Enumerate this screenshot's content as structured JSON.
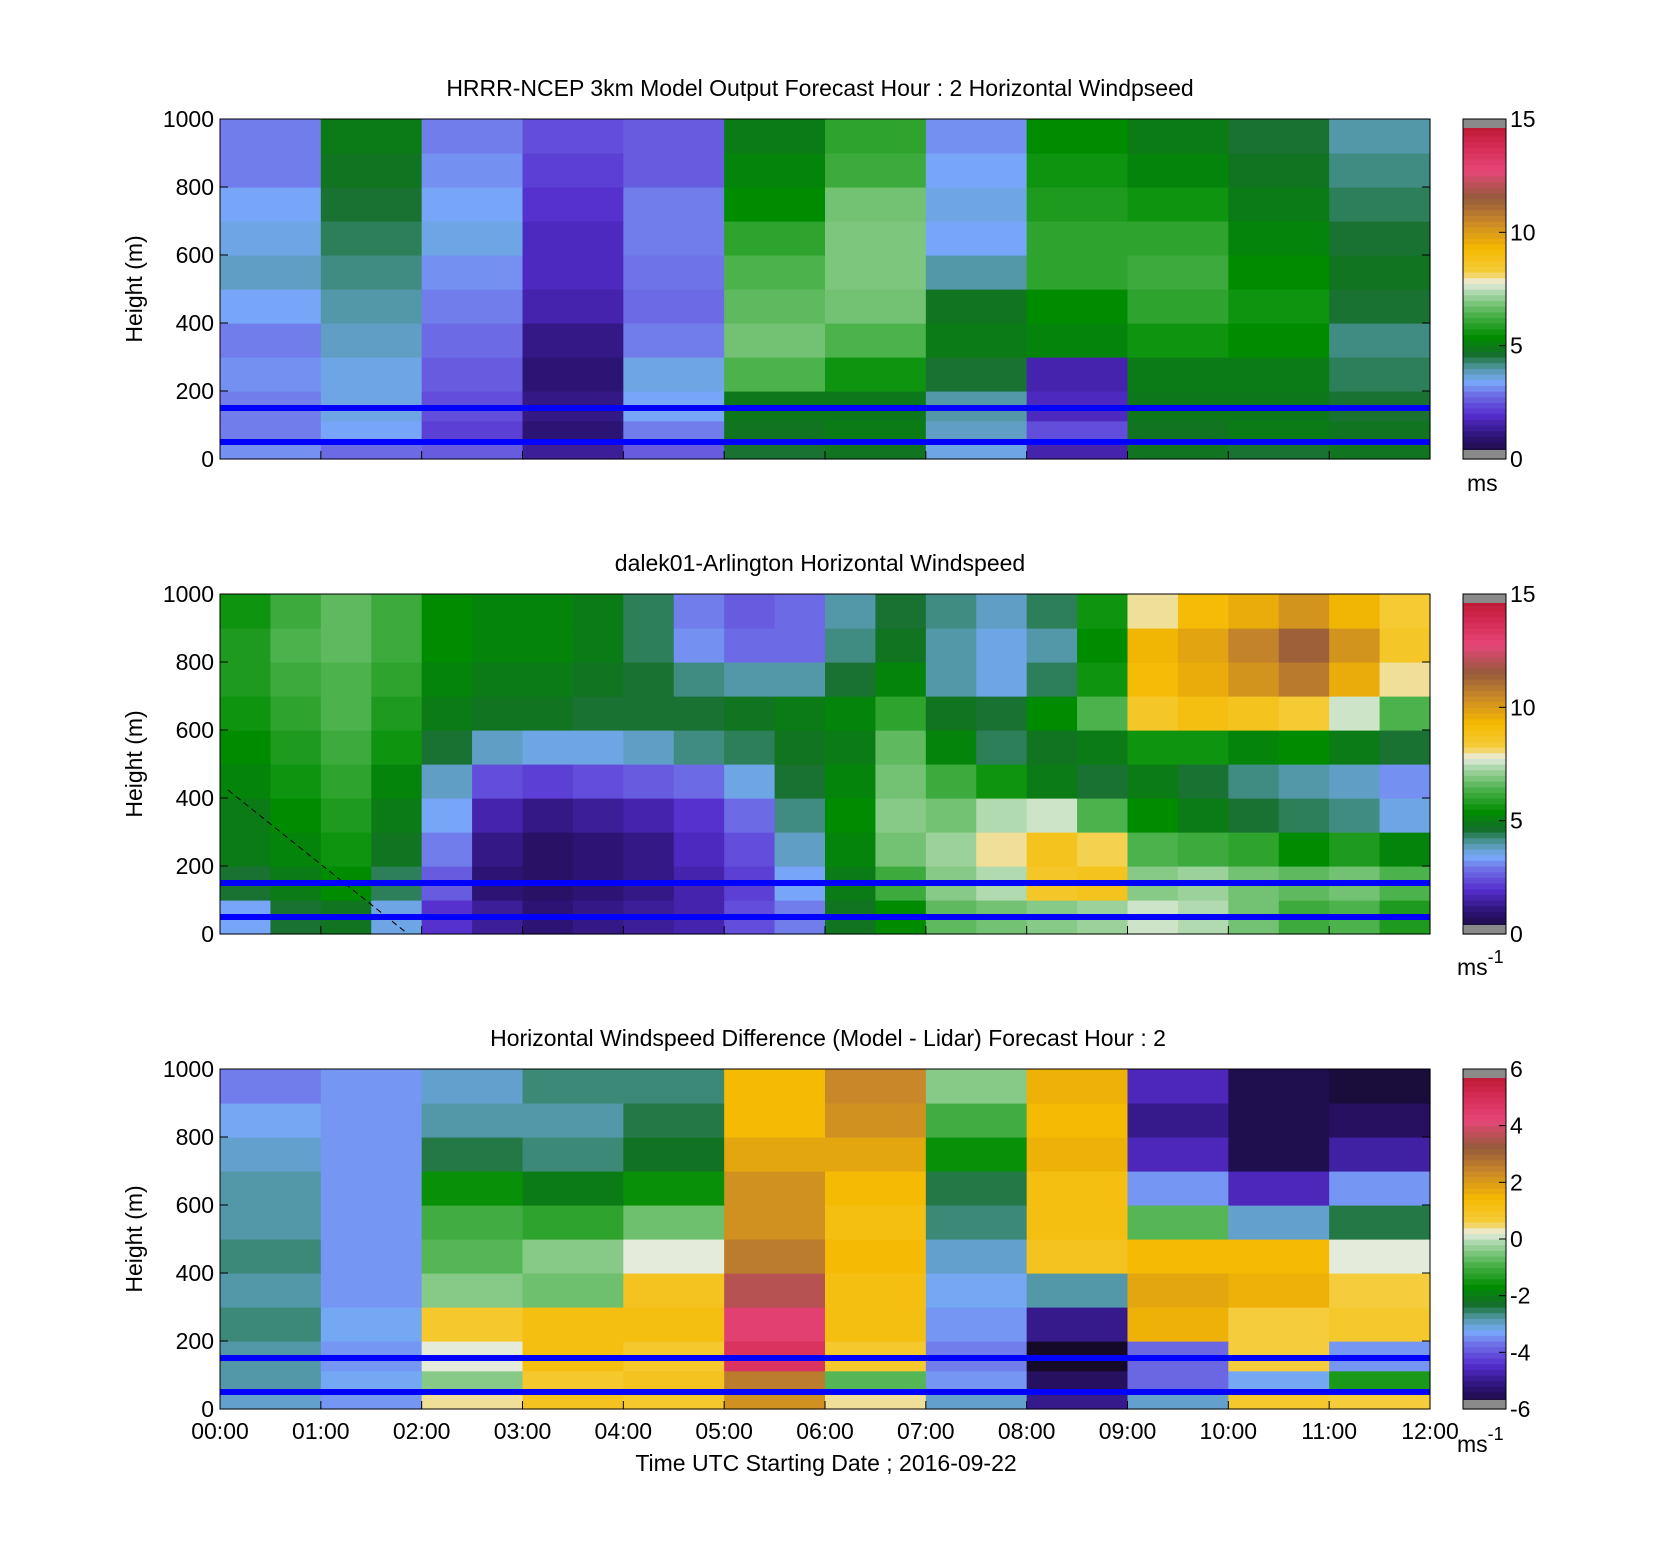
{
  "figure": {
    "x_tick_labels": [
      "00:00",
      "01:00",
      "02:00",
      "03:00",
      "04:00",
      "05:00",
      "06:00",
      "07:00",
      "08:00",
      "09:00",
      "10:00",
      "11:00",
      "12:00"
    ],
    "x_label": "Time UTC  Starting Date ; 2016-09-22",
    "reference_lines_m": [
      50,
      150
    ],
    "reference_line_color": "#0000ff"
  },
  "chart_data": [
    {
      "type": "heatmap",
      "title": "HRRR-NCEP 3km Model Output   Forecast Hour : 2 Horizontal Windpseed",
      "ylabel": "Height (m)",
      "ylim": [
        0,
        1000
      ],
      "y_ticks": [
        "0",
        "200",
        "400",
        "600",
        "800",
        "1000"
      ],
      "colorbar": {
        "range": [
          0,
          15
        ],
        "ticks": [
          "0",
          "5",
          "10",
          "15"
        ],
        "unit": "ms",
        "unit_sup": ""
      },
      "x_hours": [
        0,
        1,
        2,
        3,
        4,
        5,
        6,
        7,
        8,
        9,
        10,
        11,
        12
      ],
      "heights_m": [
        25,
        75,
        150,
        250,
        350,
        450,
        550,
        650,
        750,
        850,
        950
      ],
      "values": [
        [
          3.2,
          2.8,
          2.6,
          1.4,
          2.6,
          4.6,
          4.8,
          3.6,
          1.6,
          4.8,
          4.6,
          4.8
        ],
        [
          3.0,
          3.4,
          2.2,
          1.0,
          3.0,
          4.8,
          5.0,
          3.8,
          2.4,
          4.8,
          5.0,
          4.8
        ],
        [
          3.0,
          3.6,
          2.4,
          1.2,
          3.4,
          4.9,
          4.9,
          4.0,
          1.8,
          4.9,
          4.9,
          4.6
        ],
        [
          3.2,
          3.6,
          2.6,
          1.0,
          3.6,
          6.4,
          5.6,
          4.6,
          1.6,
          5.0,
          5.0,
          4.4
        ],
        [
          3.0,
          3.8,
          2.8,
          1.2,
          3.0,
          6.8,
          6.4,
          5.0,
          5.2,
          5.6,
          5.4,
          4.2
        ],
        [
          3.4,
          4.0,
          3.0,
          1.6,
          2.8,
          6.6,
          6.8,
          4.8,
          5.4,
          6.0,
          5.6,
          4.6
        ],
        [
          3.8,
          4.2,
          3.2,
          1.8,
          2.9,
          6.4,
          6.9,
          4.0,
          6.0,
          6.2,
          5.4,
          4.8
        ],
        [
          3.6,
          4.4,
          3.6,
          1.8,
          3.0,
          6.0,
          6.9,
          3.4,
          6.0,
          6.0,
          5.2,
          4.6
        ],
        [
          3.4,
          4.6,
          3.4,
          2.0,
          3.0,
          5.4,
          6.8,
          3.6,
          5.8,
          5.6,
          5.0,
          4.4
        ],
        [
          3.0,
          4.8,
          3.2,
          2.2,
          2.6,
          5.2,
          6.2,
          3.4,
          5.6,
          5.2,
          4.8,
          4.2
        ],
        [
          3.0,
          5.0,
          3.0,
          2.4,
          2.6,
          5.0,
          6.0,
          3.2,
          5.4,
          5.0,
          4.6,
          4.0
        ]
      ]
    },
    {
      "type": "heatmap",
      "title": "dalek01-Arlington  Horizontal Windspeed",
      "ylabel": "Height (m)",
      "ylim": [
        0,
        1000
      ],
      "y_ticks": [
        "0",
        "200",
        "400",
        "600",
        "800",
        "1000"
      ],
      "colorbar": {
        "range": [
          0,
          15
        ],
        "ticks": [
          "0",
          "5",
          "10",
          "15"
        ],
        "unit": "ms",
        "unit_sup": "-1"
      },
      "x_hours": [
        0,
        0.5,
        1,
        1.5,
        2,
        2.5,
        3,
        3.5,
        4,
        4.5,
        5,
        5.5,
        6,
        6.5,
        7,
        7.5,
        8,
        8.5,
        9,
        9.5,
        10,
        10.5,
        11,
        11.5,
        12
      ],
      "heights_m": [
        50,
        150,
        250,
        350,
        450,
        550,
        650,
        750,
        850,
        950
      ],
      "values": [
        [
          3.4,
          4.6,
          4.8,
          3.6,
          2.0,
          1.4,
          1.0,
          1.2,
          1.4,
          1.6,
          2.4,
          3.0,
          4.8,
          5.4,
          6.6,
          6.8,
          7.0,
          7.2,
          7.6,
          7.4,
          6.8,
          6.2,
          6.4,
          5.8
        ],
        [
          4.6,
          5.0,
          5.4,
          4.4,
          2.6,
          1.0,
          0.8,
          1.0,
          1.2,
          1.6,
          2.2,
          3.4,
          5.0,
          6.2,
          7.0,
          7.4,
          8.6,
          8.8,
          7.0,
          7.2,
          6.8,
          6.6,
          6.8,
          6.4
        ],
        [
          5.0,
          5.2,
          5.6,
          4.8,
          3.0,
          1.2,
          0.8,
          1.0,
          1.2,
          1.8,
          2.4,
          3.8,
          5.2,
          6.8,
          7.2,
          8.0,
          8.8,
          8.2,
          6.4,
          6.2,
          6.0,
          5.4,
          5.8,
          5.2
        ],
        [
          5.0,
          5.4,
          5.8,
          5.0,
          3.4,
          1.6,
          1.2,
          1.4,
          1.6,
          2.0,
          2.8,
          4.2,
          5.4,
          7.0,
          6.8,
          7.4,
          7.6,
          6.4,
          5.4,
          5.0,
          4.6,
          4.4,
          4.2,
          3.6
        ],
        [
          5.2,
          5.6,
          6.0,
          5.2,
          3.8,
          2.4,
          2.2,
          2.4,
          2.6,
          2.8,
          3.6,
          4.6,
          5.2,
          6.8,
          6.2,
          5.6,
          5.0,
          4.6,
          5.0,
          4.6,
          4.2,
          4.0,
          3.8,
          3.2
        ],
        [
          5.4,
          5.8,
          6.2,
          5.6,
          4.6,
          3.8,
          3.6,
          3.6,
          3.8,
          4.2,
          4.4,
          4.8,
          5.0,
          6.6,
          5.2,
          4.4,
          4.8,
          5.0,
          5.6,
          5.6,
          5.2,
          5.4,
          5.0,
          4.6
        ],
        [
          5.6,
          6.0,
          6.4,
          5.8,
          5.0,
          4.8,
          4.8,
          4.6,
          4.6,
          4.6,
          4.8,
          5.0,
          5.2,
          6.0,
          4.8,
          4.6,
          5.4,
          6.4,
          8.6,
          9.0,
          8.8,
          8.4,
          7.6,
          6.4
        ],
        [
          5.8,
          6.2,
          6.4,
          6.0,
          5.2,
          5.0,
          5.0,
          4.8,
          4.6,
          4.2,
          4.0,
          4.0,
          4.6,
          5.2,
          4.0,
          3.6,
          4.4,
          5.6,
          9.2,
          9.6,
          10.2,
          10.8,
          9.6,
          8.0
        ],
        [
          5.8,
          6.4,
          6.6,
          6.2,
          5.4,
          5.2,
          5.2,
          5.0,
          4.4,
          3.2,
          2.8,
          2.8,
          4.2,
          4.8,
          4.0,
          3.6,
          4.0,
          5.4,
          9.4,
          9.8,
          10.6,
          11.4,
          10.2,
          8.6
        ],
        [
          5.6,
          6.2,
          6.6,
          6.2,
          5.4,
          5.2,
          5.2,
          5.0,
          4.4,
          3.0,
          2.6,
          2.8,
          4.0,
          4.6,
          4.2,
          3.8,
          4.4,
          5.6,
          8.0,
          9.2,
          9.6,
          10.2,
          9.4,
          8.4
        ]
      ]
    },
    {
      "type": "heatmap",
      "title": "Horizontal Windspeed Difference (Model - Lidar) Forecast Hour : 2",
      "ylabel": "Height (m)",
      "ylim": [
        0,
        1000
      ],
      "y_ticks": [
        "0",
        "200",
        "400",
        "600",
        "800",
        "1000"
      ],
      "colorbar": {
        "range": [
          -6,
          6
        ],
        "ticks": [
          "-6",
          "-4",
          "-2",
          "0",
          "2",
          "4",
          "6"
        ],
        "unit": "ms",
        "unit_sup": "-1"
      },
      "x_hours": [
        0,
        1,
        2,
        3,
        4,
        5,
        6,
        7,
        8,
        9,
        10,
        11,
        12
      ],
      "heights_m": [
        25,
        75,
        150,
        250,
        350,
        450,
        550,
        650,
        750,
        850,
        950
      ],
      "values": [
        [
          -3.0,
          -3.4,
          0.4,
          1.0,
          0.8,
          2.2,
          0.4,
          -3.0,
          -5.0,
          -3.0,
          0.8,
          0.6
        ],
        [
          -2.8,
          -3.2,
          -0.4,
          0.8,
          1.0,
          2.6,
          -0.8,
          -3.4,
          -5.4,
          -3.8,
          -3.2,
          -1.4
        ],
        [
          -2.8,
          -3.4,
          0.2,
          1.2,
          0.8,
          4.8,
          0.8,
          -3.6,
          -6.0,
          -3.8,
          0.6,
          -3.4
        ],
        [
          -2.6,
          -3.2,
          0.8,
          1.2,
          1.2,
          4.4,
          1.2,
          -3.4,
          -5.0,
          1.6,
          0.6,
          0.8
        ],
        [
          -2.8,
          -3.4,
          -0.4,
          -0.6,
          1.0,
          3.6,
          1.2,
          -3.2,
          -2.8,
          1.8,
          1.6,
          0.6
        ],
        [
          -2.6,
          -3.4,
          -0.8,
          -0.4,
          0.2,
          2.6,
          1.4,
          -3.0,
          1.0,
          1.4,
          1.4,
          0.2
        ],
        [
          -2.8,
          -3.4,
          -1.0,
          -1.2,
          -0.6,
          2.2,
          1.2,
          -2.6,
          1.2,
          -0.8,
          -3.0,
          -2.4
        ],
        [
          -2.8,
          -3.4,
          -1.6,
          -2.0,
          -1.6,
          2.2,
          1.4,
          -2.4,
          1.2,
          -3.4,
          -4.6,
          -3.4
        ],
        [
          -3.0,
          -3.4,
          -2.4,
          -2.6,
          -2.2,
          1.8,
          1.8,
          -1.6,
          1.6,
          -4.6,
          -5.6,
          -4.8
        ],
        [
          -3.2,
          -3.4,
          -2.8,
          -2.8,
          -2.4,
          1.4,
          2.2,
          -1.0,
          1.4,
          -5.0,
          -5.6,
          -5.4
        ],
        [
          -3.6,
          -3.4,
          -3.0,
          -2.6,
          -2.6,
          1.4,
          2.4,
          -0.4,
          1.6,
          -4.6,
          -5.6,
          -5.8
        ]
      ]
    }
  ]
}
